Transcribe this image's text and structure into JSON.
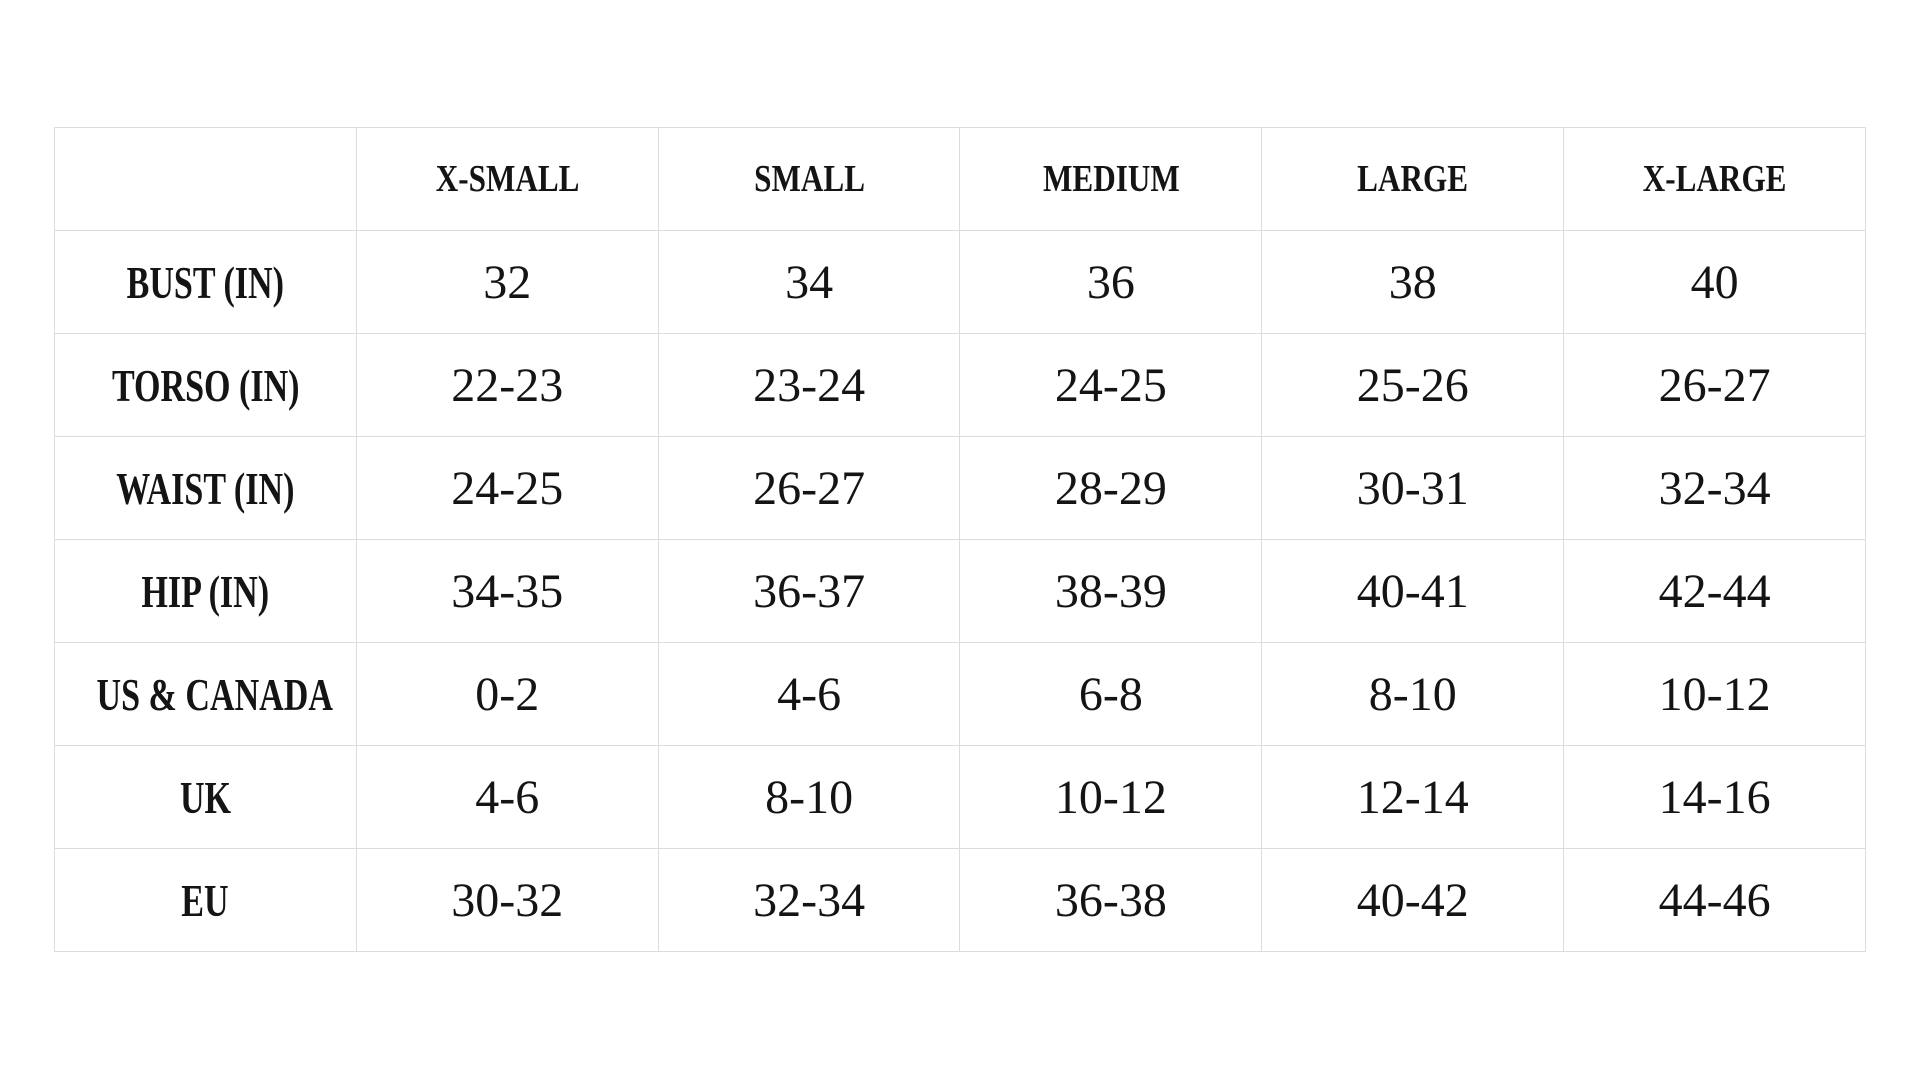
{
  "table": {
    "title": "size-chart",
    "columns": [
      "",
      "X-SMALL",
      "SMALL",
      "MEDIUM",
      "LARGE",
      "X-LARGE"
    ],
    "rows": [
      {
        "label": "BUST (IN)",
        "values": [
          "32",
          "34",
          "36",
          "38",
          "40"
        ]
      },
      {
        "label": "TORSO (IN)",
        "values": [
          "22-23",
          "23-24",
          "24-25",
          "25-26",
          "26-27"
        ]
      },
      {
        "label": "WAIST (IN)",
        "values": [
          "24-25",
          "26-27",
          "28-29",
          "30-31",
          "32-34"
        ]
      },
      {
        "label": "HIP (IN)",
        "values": [
          "34-35",
          "36-37",
          "38-39",
          "40-41",
          "42-44"
        ]
      },
      {
        "label": "US & CANADA",
        "values": [
          "0-2",
          "4-6",
          "6-8",
          "8-10",
          "10-12"
        ]
      },
      {
        "label": "UK",
        "values": [
          "4-6",
          "8-10",
          "10-12",
          "12-14",
          "14-16"
        ]
      },
      {
        "label": "EU",
        "values": [
          "30-32",
          "32-34",
          "36-38",
          "40-42",
          "44-46"
        ]
      }
    ],
    "colors": {
      "background": "#ffffff",
      "border": "#dcdcdc",
      "text": "#141414"
    }
  }
}
